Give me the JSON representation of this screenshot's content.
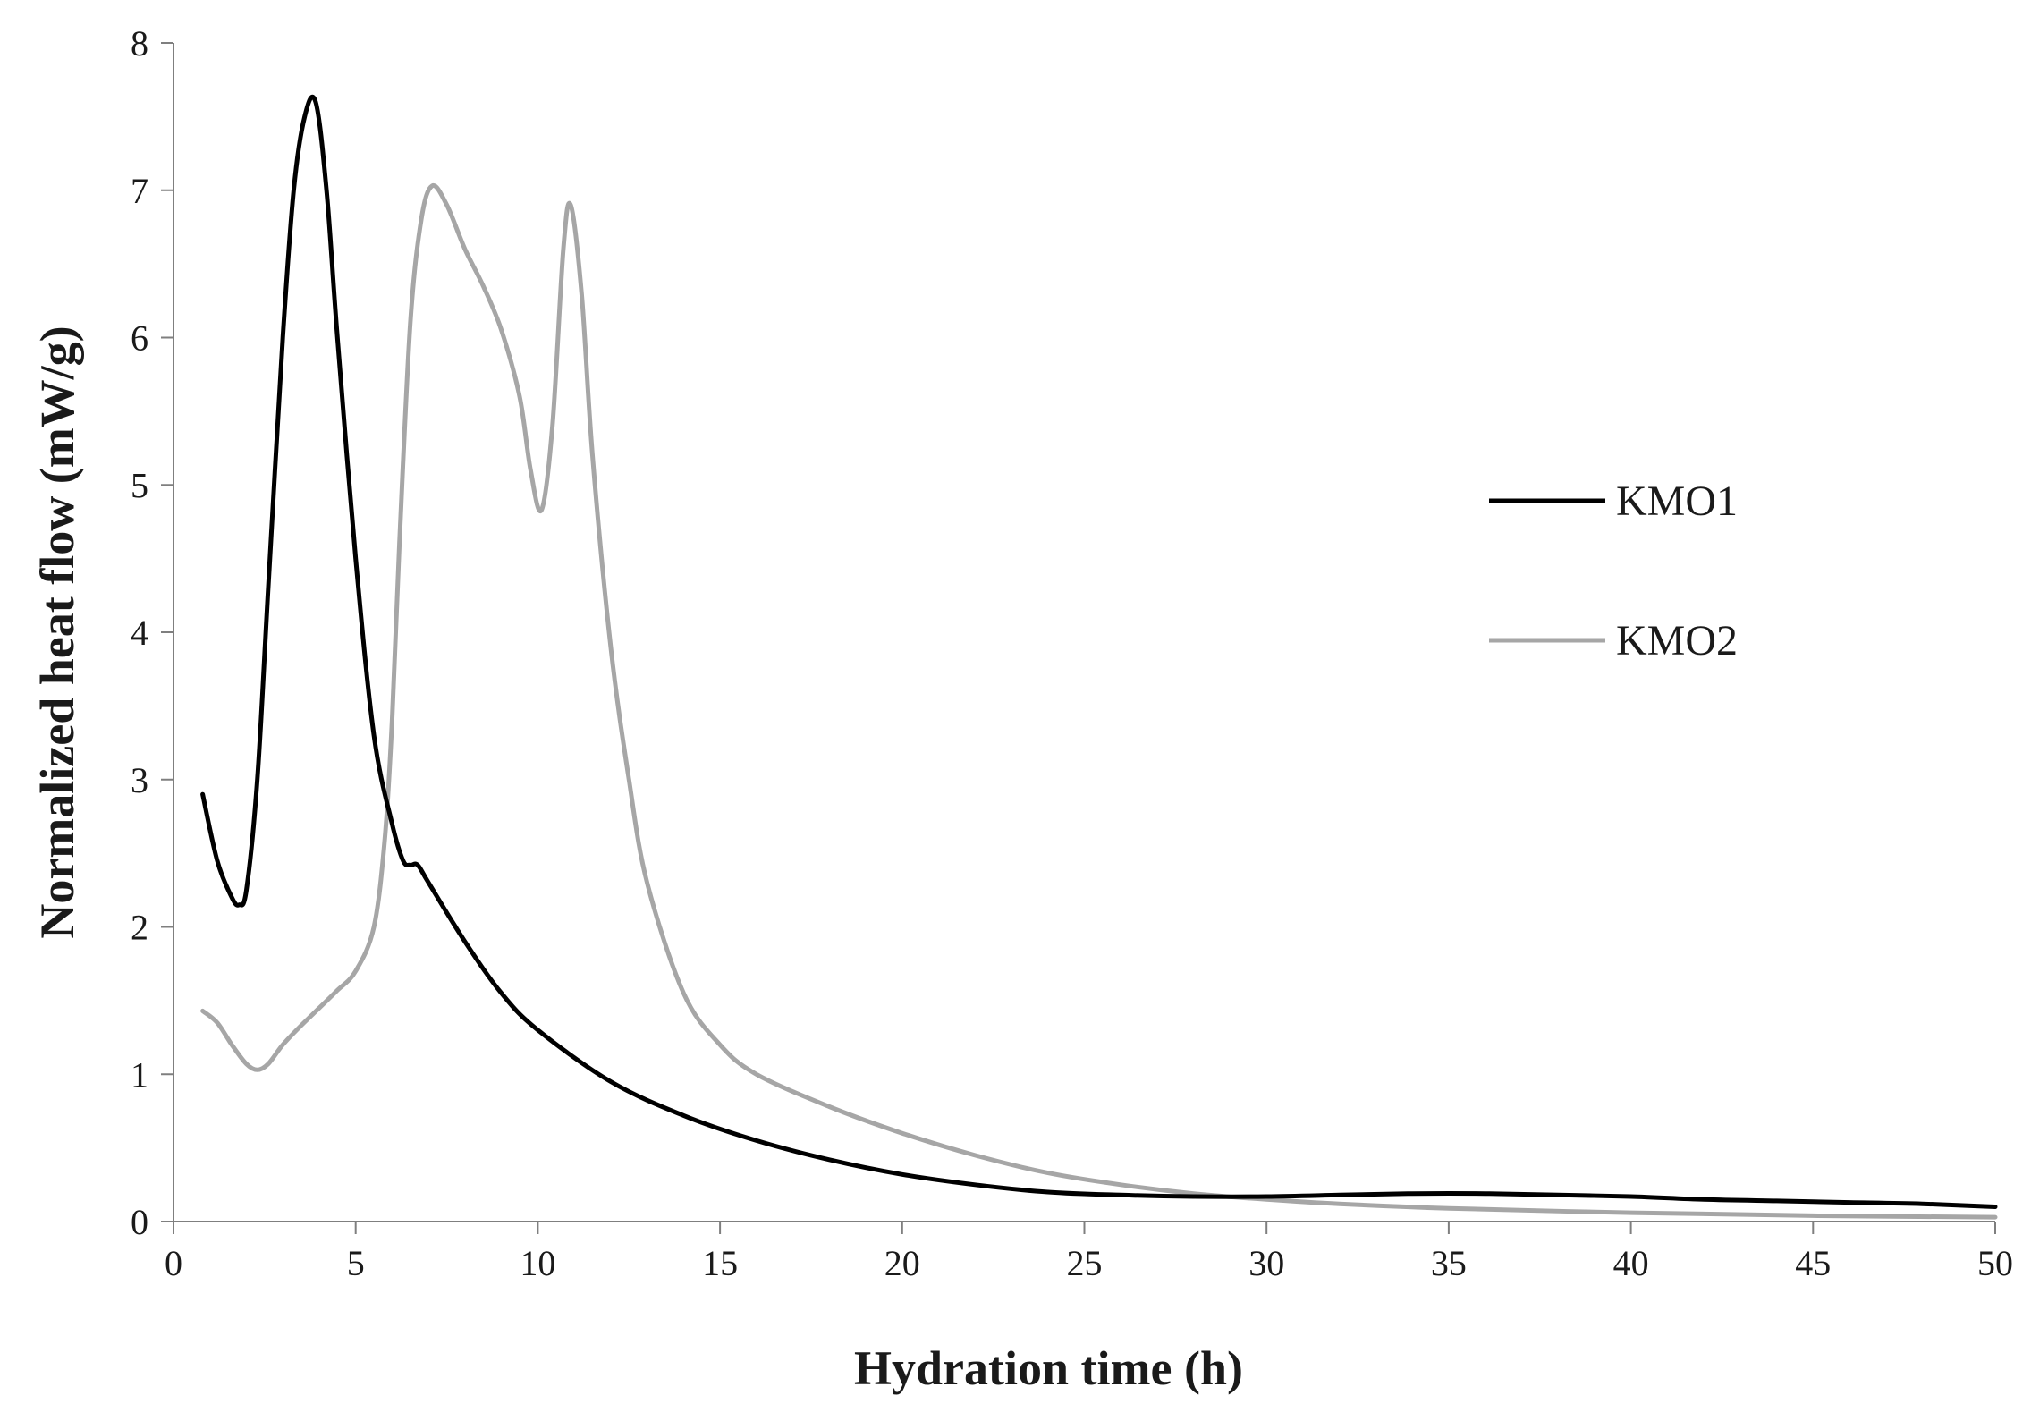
{
  "chart_data": {
    "type": "line",
    "title": "",
    "xlabel": "Hydration time (h)",
    "ylabel": "Normalized heat flow (mW/g)",
    "xlim": [
      0,
      50
    ],
    "ylim": [
      0,
      8
    ],
    "xticks": [
      0,
      5,
      10,
      15,
      20,
      25,
      30,
      35,
      40,
      45,
      50
    ],
    "yticks": [
      0,
      1,
      2,
      3,
      4,
      5,
      6,
      7,
      8
    ],
    "grid": false,
    "legend_position": "right-center",
    "series": [
      {
        "name": "KMO1",
        "color": "#000000",
        "x": [
          0.8,
          1.2,
          1.6,
          1.8,
          2.0,
          2.3,
          2.6,
          3.0,
          3.3,
          3.6,
          3.9,
          4.2,
          4.5,
          5.0,
          5.5,
          6.0,
          6.3,
          6.5,
          6.7,
          7.0,
          8.0,
          9.0,
          10.0,
          12.0,
          14.0,
          16.0,
          18.0,
          20.0,
          22.0,
          24.0,
          26.0,
          28.0,
          30.0,
          32.0,
          34.0,
          36.0,
          38.0,
          40.0,
          42.0,
          44.0,
          46.0,
          48.0,
          50.0
        ],
        "y": [
          2.9,
          2.45,
          2.2,
          2.15,
          2.25,
          3.0,
          4.3,
          6.0,
          7.0,
          7.5,
          7.6,
          7.0,
          6.0,
          4.5,
          3.3,
          2.7,
          2.45,
          2.42,
          2.42,
          2.3,
          1.9,
          1.55,
          1.3,
          0.95,
          0.72,
          0.55,
          0.42,
          0.32,
          0.25,
          0.2,
          0.18,
          0.17,
          0.17,
          0.18,
          0.19,
          0.19,
          0.18,
          0.17,
          0.15,
          0.14,
          0.13,
          0.12,
          0.1
        ]
      },
      {
        "name": "KMO2",
        "color": "#a6a6a6",
        "x": [
          0.8,
          1.2,
          1.6,
          2.0,
          2.3,
          2.6,
          3.0,
          3.5,
          4.0,
          4.5,
          5.0,
          5.5,
          5.8,
          6.0,
          6.2,
          6.5,
          6.8,
          7.1,
          7.5,
          8.0,
          8.5,
          9.0,
          9.5,
          9.8,
          10.1,
          10.4,
          10.7,
          10.9,
          11.2,
          11.5,
          12.0,
          12.5,
          13.0,
          14.0,
          15.0,
          16.0,
          18.0,
          20.0,
          22.0,
          24.0,
          26.0,
          28.0,
          30.0,
          32.0,
          35.0,
          40.0,
          45.0,
          50.0
        ],
        "y": [
          1.43,
          1.35,
          1.2,
          1.07,
          1.03,
          1.07,
          1.2,
          1.33,
          1.45,
          1.57,
          1.7,
          2.0,
          2.6,
          3.4,
          4.6,
          6.1,
          6.8,
          7.03,
          6.9,
          6.6,
          6.35,
          6.05,
          5.6,
          5.1,
          4.83,
          5.4,
          6.6,
          6.9,
          6.3,
          5.2,
          3.9,
          3.0,
          2.3,
          1.55,
          1.2,
          1.0,
          0.78,
          0.6,
          0.45,
          0.33,
          0.25,
          0.19,
          0.15,
          0.12,
          0.09,
          0.06,
          0.04,
          0.03
        ]
      }
    ]
  }
}
